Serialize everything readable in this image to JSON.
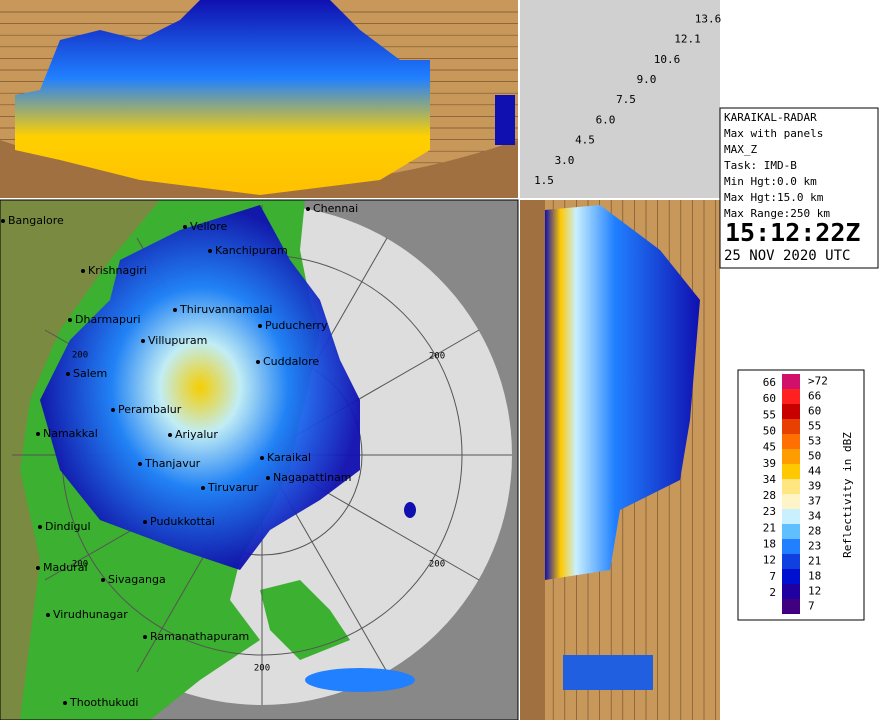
{
  "panels": {
    "height_labels": [
      "1.5",
      "3.0",
      "4.5",
      "6.0",
      "7.5",
      "9.0",
      "10.6",
      "12.1",
      "13.6"
    ]
  },
  "map": {
    "cities": [
      "Bangalore",
      "Chennai",
      "Vellore",
      "Kanchipuram",
      "Krishnagiri",
      "Thiruvannamalai",
      "Dharmapuri",
      "Puducherry",
      "Villupuram",
      "Cuddalore",
      "Salem",
      "Perambalur",
      "Namakkal",
      "Ariyalur",
      "Karaikal",
      "Thanjavur",
      "Nagapattinam",
      "Tiruvarur",
      "Pudukkottai",
      "Dindigul",
      "Madurai",
      "Sivaganga",
      "Virudhunagar",
      "Ramanathapuram",
      "Thoothukudi"
    ],
    "range_labels": [
      "200",
      "200",
      "200",
      "200",
      "200"
    ]
  },
  "info": {
    "radar": "KARAIKAL-RADAR",
    "product": "Max with panels",
    "field": "MAX_Z",
    "task": "Task: IMD-B",
    "min_height": "Min Hgt:0.0 km",
    "max_height": "Max Hgt:15.0 km",
    "max_range": "Max Range:250 km",
    "time": "15:12:22Z",
    "date": "25 NOV 2020 UTC"
  },
  "legend": {
    "title": "Reflectivity in dBZ",
    "left_labels": [
      "66",
      "60",
      "55",
      "50",
      "45",
      "39",
      "34",
      "28",
      "23",
      "21",
      "18",
      "12",
      "7",
      "2"
    ],
    "right_labels": [
      ">72",
      "66",
      "60",
      "55",
      "53",
      "50",
      "44",
      "39",
      "37",
      "34",
      "28",
      "23",
      "21",
      "18",
      "12",
      "7"
    ],
    "colors": [
      "#d0106a",
      "#ff2020",
      "#c80000",
      "#e84000",
      "#ff7000",
      "#ff9c00",
      "#ffc800",
      "#ffe680",
      "#fff4c8",
      "#c8f0ff",
      "#60c0ff",
      "#2080ff",
      "#1040e0",
      "#0010d0",
      "#2000a0",
      "#400080"
    ]
  }
}
